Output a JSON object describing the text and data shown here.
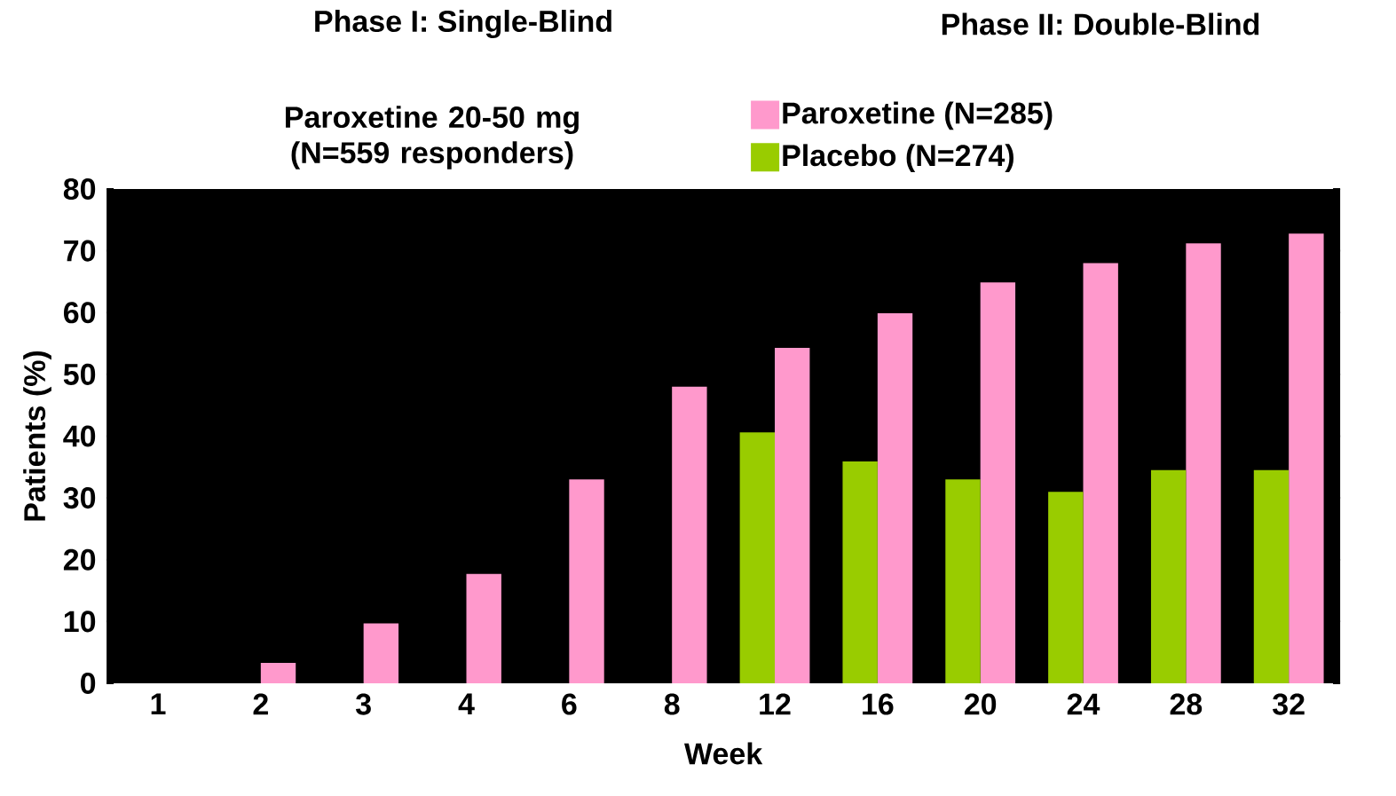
{
  "chart_data": {
    "type": "bar",
    "xlabel": "Week",
    "ylabel": "Patients (%)",
    "categories": [
      "1",
      "2",
      "3",
      "4",
      "6",
      "8",
      "12",
      "16",
      "20",
      "24",
      "28",
      "32"
    ],
    "series": [
      {
        "name": "Paroxetine (N=285)",
        "color": "#ff99cc",
        "values": [
          0,
          3.3,
          9.7,
          17.7,
          33,
          48,
          54.3,
          59.9,
          64.9,
          68,
          71.2,
          72.8
        ]
      },
      {
        "name": "Placebo (N=274)",
        "color": "#99cc00",
        "values": [
          null,
          null,
          null,
          null,
          null,
          null,
          40.6,
          35.9,
          33,
          31,
          34.5,
          34.5
        ]
      }
    ],
    "ylim": [
      0,
      80
    ],
    "yticks": [
      0,
      10,
      20,
      30,
      40,
      50,
      60,
      70,
      80
    ],
    "legend": "top",
    "annotations": [
      "Phase I: Single-Blind",
      "Paroxetine 20-50 mg (N=559 responders)",
      "Phase II: Double-Blind"
    ]
  }
}
